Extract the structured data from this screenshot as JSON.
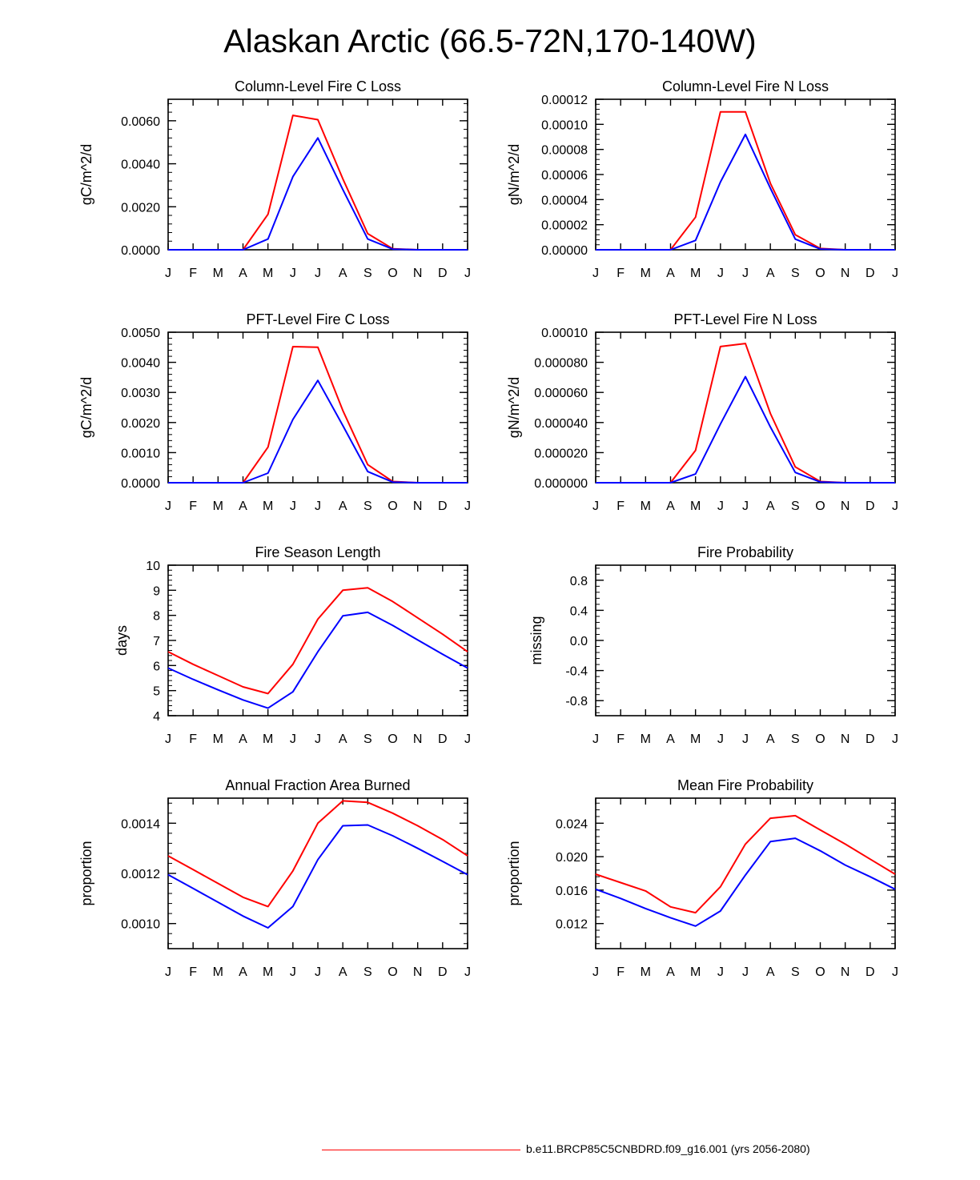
{
  "title": "Alaskan Arctic (66.5-72N,170-140W)",
  "legend": {
    "label": "b.e11.BRCP85C5CNBDRD.f09_g16.001 (yrs 2056-2080)",
    "color": "#ff0000"
  },
  "colors": {
    "red": "#ff0000",
    "blue": "#0000ff"
  },
  "chart_data": [
    {
      "type": "line",
      "title": "Column-Level Fire C Loss",
      "ylabel": "gC/m^2/d",
      "categories": [
        "J",
        "F",
        "M",
        "A",
        "M",
        "J",
        "J",
        "A",
        "S",
        "O",
        "N",
        "D",
        "J"
      ],
      "ylim": [
        0,
        0.007
      ],
      "yticks": [
        0.0,
        0.002,
        0.004,
        0.006
      ],
      "ytick_labels": [
        "0.0000",
        "0.0020",
        "0.0040",
        "0.0060"
      ],
      "series": [
        {
          "name": "red",
          "color": "#ff0000",
          "values": [
            0,
            0,
            0,
            0,
            0.00165,
            0.00625,
            0.00605,
            0.0033,
            0.00075,
            5e-05,
            0,
            0,
            0
          ]
        },
        {
          "name": "blue",
          "color": "#0000ff",
          "values": [
            0,
            0,
            0,
            0,
            0.0005,
            0.0034,
            0.0052,
            0.0028,
            0.0005,
            3e-05,
            0,
            0,
            0
          ]
        }
      ]
    },
    {
      "type": "line",
      "title": "Column-Level Fire N Loss",
      "ylabel": "gN/m^2/d",
      "categories": [
        "J",
        "F",
        "M",
        "A",
        "M",
        "J",
        "J",
        "A",
        "S",
        "O",
        "N",
        "D",
        "J"
      ],
      "ylim": [
        0,
        0.00012
      ],
      "yticks": [
        0.0,
        2e-05,
        4e-05,
        6e-05,
        8e-05,
        0.0001,
        0.00012
      ],
      "ytick_labels": [
        "0.00000",
        "0.00002",
        "0.00004",
        "0.00006",
        "0.00008",
        "0.00010",
        "0.00012"
      ],
      "series": [
        {
          "name": "red",
          "color": "#ff0000",
          "values": [
            0,
            0,
            0,
            0,
            2.6e-05,
            0.00011,
            0.00011,
            5.3e-05,
            1.2e-05,
            1e-06,
            0,
            0,
            0
          ]
        },
        {
          "name": "blue",
          "color": "#0000ff",
          "values": [
            0,
            0,
            0,
            0,
            7.5e-06,
            5.4e-05,
            9.2e-05,
            4.9e-05,
            8.5e-06,
            6e-07,
            0,
            0,
            0
          ]
        }
      ]
    },
    {
      "type": "line",
      "title": "PFT-Level Fire C Loss",
      "ylabel": "gC/m^2/d",
      "categories": [
        "J",
        "F",
        "M",
        "A",
        "M",
        "J",
        "J",
        "A",
        "S",
        "O",
        "N",
        "D",
        "J"
      ],
      "ylim": [
        0,
        0.005
      ],
      "yticks": [
        0.0,
        0.001,
        0.002,
        0.003,
        0.004,
        0.005
      ],
      "ytick_labels": [
        "0.0000",
        "0.0010",
        "0.0020",
        "0.0030",
        "0.0040",
        "0.0050"
      ],
      "series": [
        {
          "name": "red",
          "color": "#ff0000",
          "values": [
            0,
            0,
            0,
            0,
            0.00118,
            0.00452,
            0.0045,
            0.0024,
            0.0006,
            4e-05,
            0,
            0,
            0
          ]
        },
        {
          "name": "blue",
          "color": "#0000ff",
          "values": [
            0,
            0,
            0,
            0,
            0.00032,
            0.0021,
            0.0034,
            0.0019,
            0.00037,
            2e-05,
            0,
            0,
            0
          ]
        }
      ]
    },
    {
      "type": "line",
      "title": "PFT-Level Fire N Loss",
      "ylabel": "gN/m^2/d",
      "categories": [
        "J",
        "F",
        "M",
        "A",
        "M",
        "J",
        "J",
        "A",
        "S",
        "O",
        "N",
        "D",
        "J"
      ],
      "ylim": [
        0,
        0.0001
      ],
      "yticks": [
        0.0,
        2e-05,
        4e-05,
        6e-05,
        8e-05,
        0.0001
      ],
      "ytick_labels": [
        "0.000000",
        "0.000020",
        "0.000040",
        "0.000060",
        "0.000080",
        "0.00010"
      ],
      "series": [
        {
          "name": "red",
          "color": "#ff0000",
          "values": [
            0,
            0,
            0,
            0,
            2.15e-05,
            9.05e-05,
            9.25e-05,
            4.6e-05,
            1.05e-05,
            8e-07,
            0,
            0,
            0
          ]
        },
        {
          "name": "blue",
          "color": "#0000ff",
          "values": [
            0,
            0,
            0,
            0,
            5.8e-06,
            3.9e-05,
            7.05e-05,
            3.7e-05,
            6.8e-06,
            5e-07,
            0,
            0,
            0
          ]
        }
      ]
    },
    {
      "type": "line",
      "title": "Fire Season Length",
      "ylabel": "days",
      "categories": [
        "J",
        "F",
        "M",
        "A",
        "M",
        "J",
        "J",
        "A",
        "S",
        "O",
        "N",
        "D",
        "J"
      ],
      "ylim": [
        4,
        10
      ],
      "yticks": [
        4,
        5,
        6,
        7,
        8,
        9,
        10
      ],
      "ytick_labels": [
        "4",
        "5",
        "6",
        "7",
        "8",
        "9",
        "10"
      ],
      "series": [
        {
          "name": "red",
          "color": "#ff0000",
          "values": [
            6.55,
            6.05,
            5.6,
            5.15,
            4.88,
            6.05,
            7.85,
            9.0,
            9.1,
            8.55,
            7.9,
            7.25,
            6.55
          ]
        },
        {
          "name": "blue",
          "color": "#0000ff",
          "values": [
            5.9,
            5.45,
            5.03,
            4.63,
            4.3,
            4.95,
            6.55,
            7.98,
            8.12,
            7.6,
            7.02,
            6.45,
            5.9
          ]
        }
      ]
    },
    {
      "type": "line",
      "title": "Fire Probability",
      "ylabel": "missing",
      "categories": [
        "J",
        "F",
        "M",
        "A",
        "M",
        "J",
        "J",
        "A",
        "S",
        "O",
        "N",
        "D",
        "J"
      ],
      "ylim": [
        -1.0,
        1.0
      ],
      "yticks": [
        -0.8,
        -0.4,
        0.0,
        0.4,
        0.8
      ],
      "ytick_labels": [
        "-0.8",
        "-0.4",
        "0.0",
        "0.4",
        "0.8"
      ],
      "series": []
    },
    {
      "type": "line",
      "title": "Annual Fraction Area Burned",
      "ylabel": "proportion",
      "categories": [
        "J",
        "F",
        "M",
        "A",
        "M",
        "J",
        "J",
        "A",
        "S",
        "O",
        "N",
        "D",
        "J"
      ],
      "ylim": [
        0.0009,
        0.0015
      ],
      "yticks": [
        0.001,
        0.0012,
        0.0014
      ],
      "ytick_labels": [
        "0.0010",
        "0.0012",
        "0.0014"
      ],
      "series": [
        {
          "name": "red",
          "color": "#ff0000",
          "values": [
            0.00127,
            0.001215,
            0.00116,
            0.001105,
            0.001068,
            0.00121,
            0.0014,
            0.001489,
            0.001483,
            0.00144,
            0.00139,
            0.001335,
            0.00127
          ]
        },
        {
          "name": "blue",
          "color": "#0000ff",
          "values": [
            0.001195,
            0.00114,
            0.001085,
            0.00103,
            0.000983,
            0.001068,
            0.001255,
            0.00139,
            0.001393,
            0.00135,
            0.0013,
            0.001248,
            0.001195
          ]
        }
      ]
    },
    {
      "type": "line",
      "title": "Mean Fire Probability",
      "ylabel": "proportion",
      "categories": [
        "J",
        "F",
        "M",
        "A",
        "M",
        "J",
        "J",
        "A",
        "S",
        "O",
        "N",
        "D",
        "J"
      ],
      "ylim": [
        0.009,
        0.027
      ],
      "yticks": [
        0.012,
        0.016,
        0.02,
        0.024
      ],
      "ytick_labels": [
        "0.012",
        "0.016",
        "0.020",
        "0.024"
      ],
      "series": [
        {
          "name": "red",
          "color": "#ff0000",
          "values": [
            0.0179,
            0.0169,
            0.0159,
            0.014,
            0.0133,
            0.0164,
            0.0215,
            0.0246,
            0.0249,
            0.0232,
            0.0215,
            0.0197,
            0.0179
          ]
        },
        {
          "name": "blue",
          "color": "#0000ff",
          "values": [
            0.0161,
            0.015,
            0.0138,
            0.0127,
            0.0117,
            0.0135,
            0.0178,
            0.0218,
            0.0222,
            0.0207,
            0.019,
            0.0176,
            0.0161
          ]
        }
      ]
    }
  ]
}
